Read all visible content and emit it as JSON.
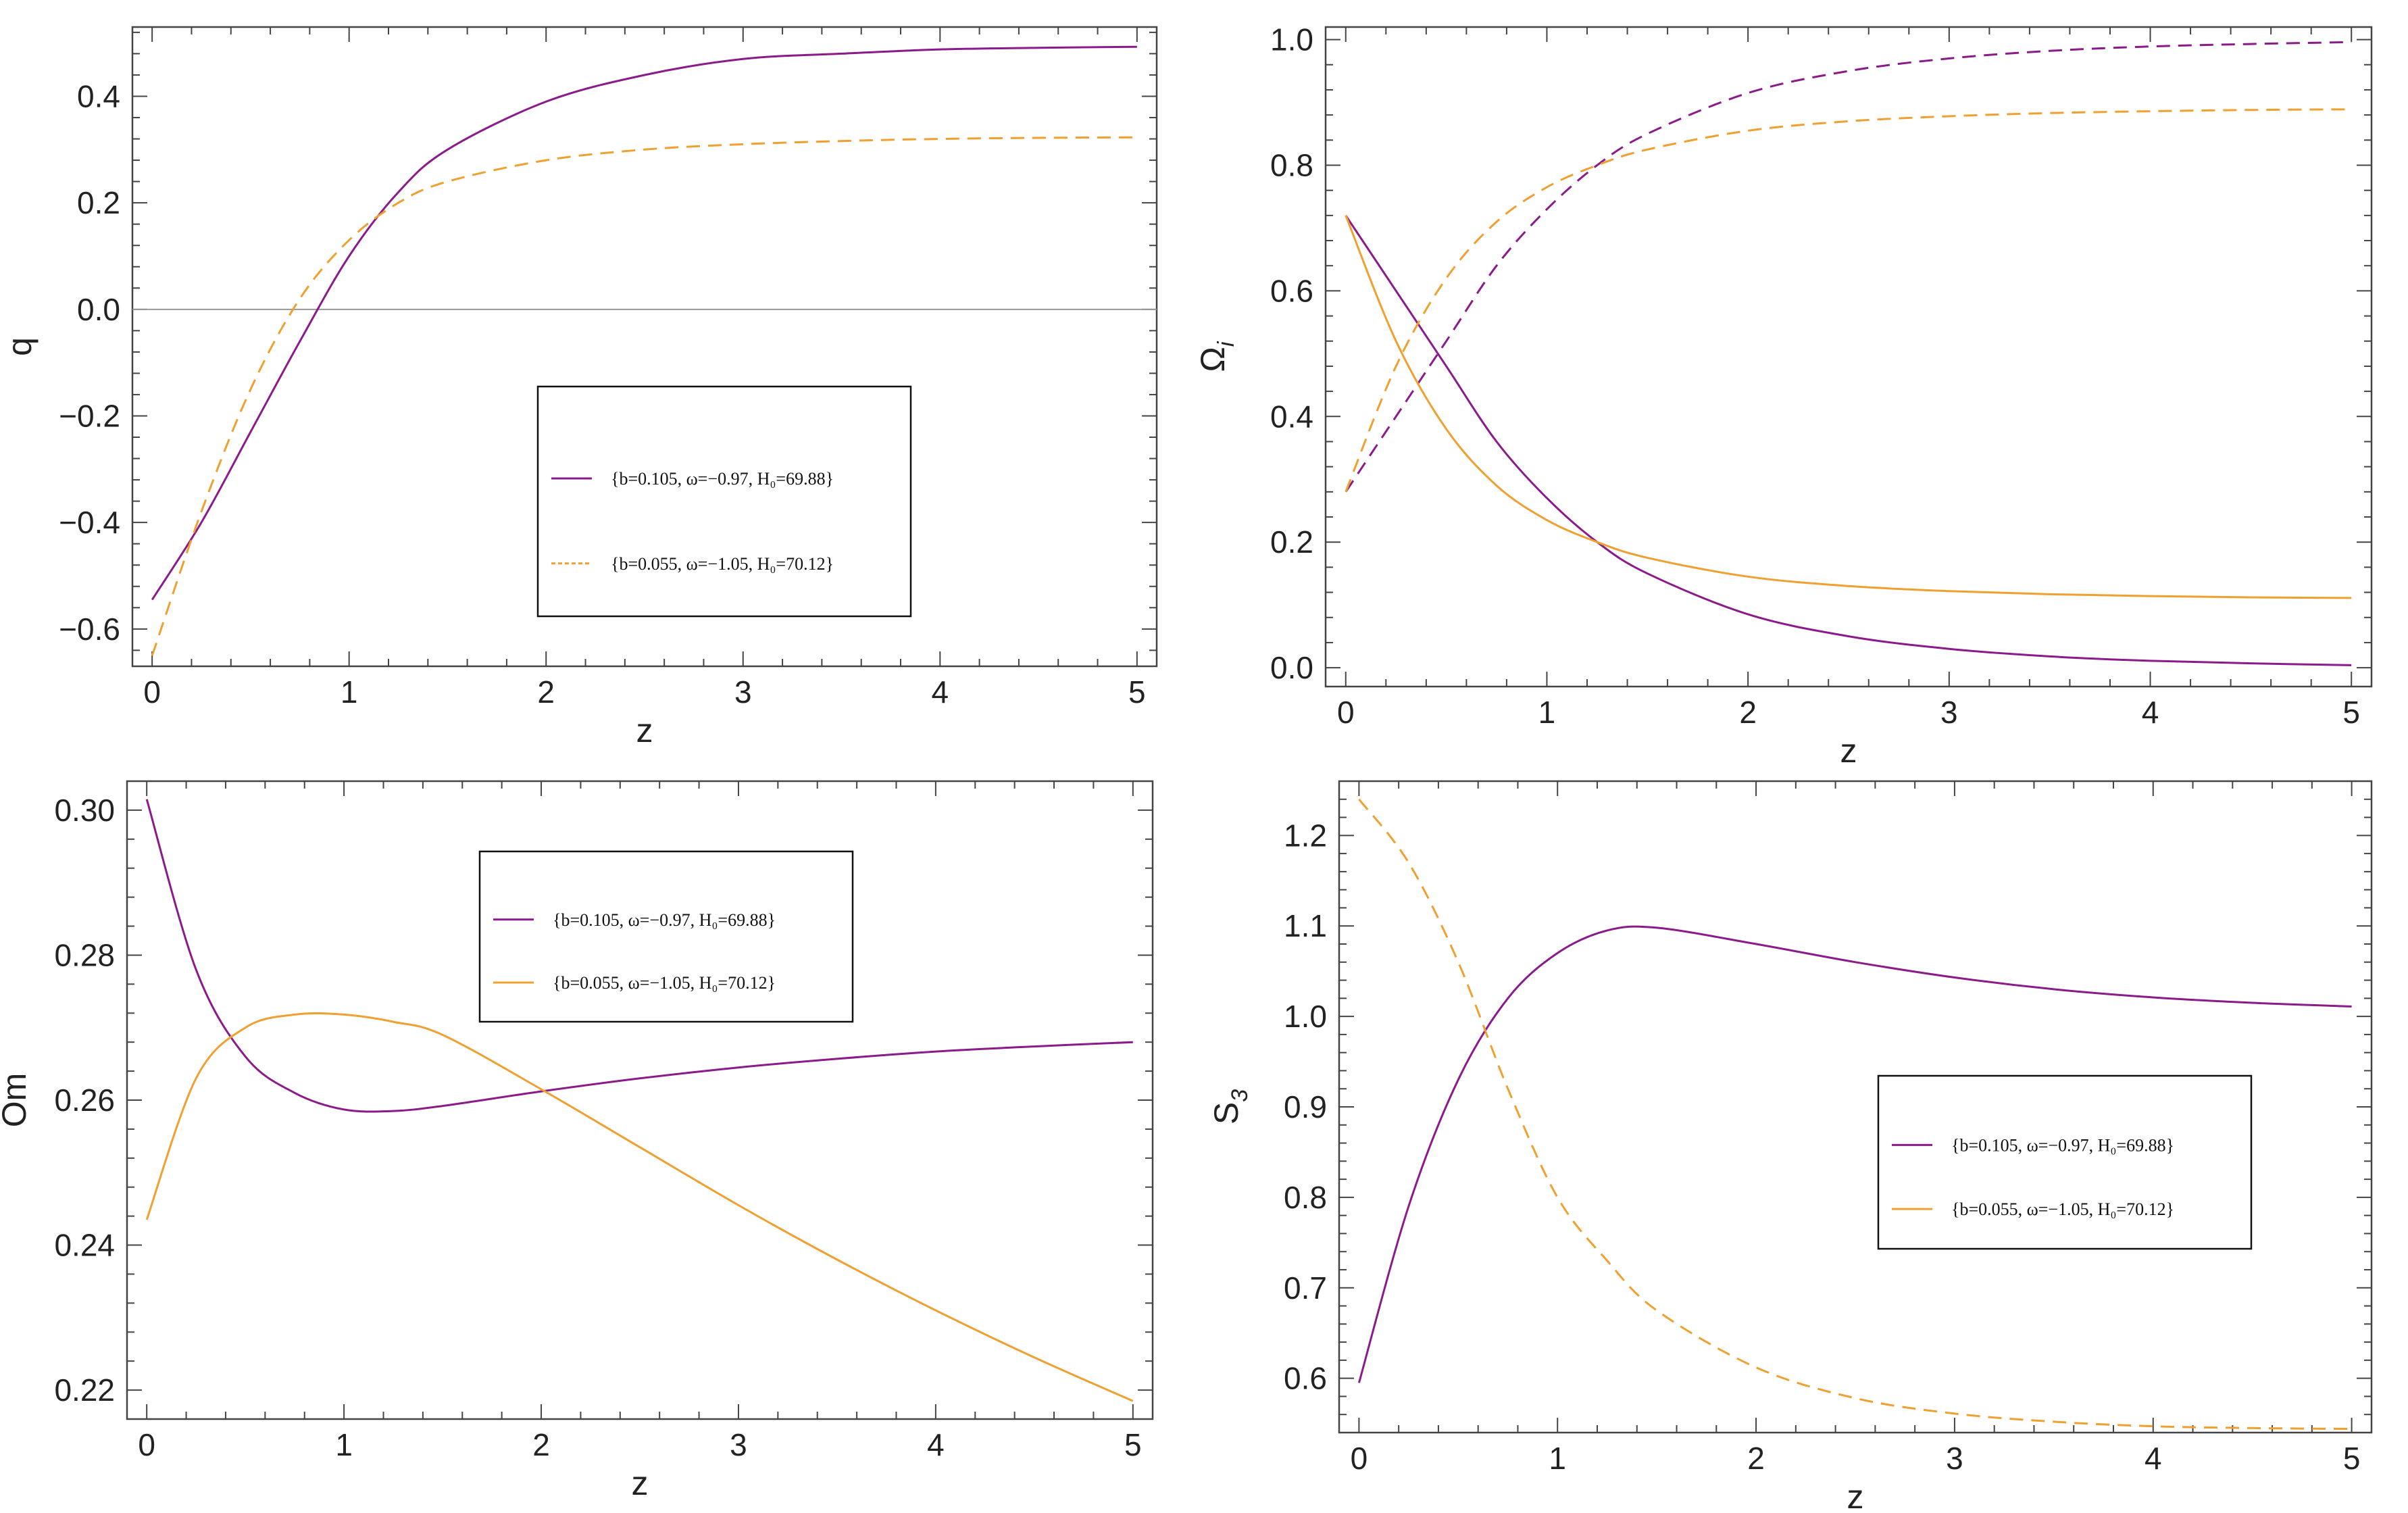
{
  "colors": {
    "purple": "#8B1A8B",
    "orange": "#F0A030",
    "frame": "#444444",
    "zero_line": "#999999"
  },
  "chart_data": [
    {
      "id": "q",
      "type": "line",
      "xlabel": "z",
      "ylabel": "q",
      "xlim": [
        -0.1,
        5.1
      ],
      "ylim": [
        -0.67,
        0.53
      ],
      "xticks": [
        0,
        1,
        2,
        3,
        4,
        5
      ],
      "yticks": [
        -0.6,
        -0.4,
        -0.2,
        0.0,
        0.2,
        0.4
      ],
      "ytick_labels": [
        "−0.6",
        "−0.4",
        "−0.2",
        "0.0",
        "0.2",
        "0.4"
      ],
      "zero_line": true,
      "legend_position": "center-right",
      "x": [
        0,
        0.25,
        0.5,
        0.75,
        1,
        1.25,
        1.5,
        2,
        2.5,
        3,
        3.5,
        4,
        4.5,
        5
      ],
      "series": [
        {
          "name": "{b=0.105, ω=−0.97, H₀=69.88}",
          "color": "purple",
          "dash": false,
          "values": [
            -0.545,
            -0.4,
            -0.23,
            -0.06,
            0.1,
            0.22,
            0.3,
            0.39,
            0.44,
            0.47,
            0.48,
            0.488,
            0.491,
            0.493
          ]
        },
        {
          "name": "{b=0.055, ω=−1.05, H₀=70.12}",
          "color": "orange",
          "dash": true,
          "values": [
            -0.65,
            -0.38,
            -0.15,
            0.02,
            0.13,
            0.2,
            0.24,
            0.28,
            0.3,
            0.31,
            0.316,
            0.32,
            0.322,
            0.323
          ]
        }
      ]
    },
    {
      "id": "omega_i",
      "type": "line",
      "xlabel": "z",
      "ylabel": "Ω",
      "ylabel_sub": "i",
      "xlim": [
        -0.1,
        5.1
      ],
      "ylim": [
        -0.03,
        1.02
      ],
      "xticks": [
        0,
        1,
        2,
        3,
        4,
        5
      ],
      "yticks": [
        0.0,
        0.2,
        0.4,
        0.6,
        0.8,
        1.0
      ],
      "ytick_labels": [
        "0.0",
        "0.2",
        "0.4",
        "0.6",
        "0.8",
        "1.0"
      ],
      "legend_position": "none",
      "x": [
        0,
        0.25,
        0.5,
        0.75,
        1,
        1.25,
        1.5,
        2,
        2.5,
        3,
        3.5,
        4,
        4.5,
        5
      ],
      "series": [
        {
          "color": "purple",
          "dash": false,
          "values": [
            0.72,
            0.6,
            0.48,
            0.36,
            0.27,
            0.2,
            0.15,
            0.085,
            0.05,
            0.03,
            0.018,
            0.011,
            0.007,
            0.004
          ]
        },
        {
          "color": "purple",
          "dash": true,
          "values": [
            0.28,
            0.4,
            0.52,
            0.64,
            0.73,
            0.8,
            0.85,
            0.915,
            0.95,
            0.97,
            0.982,
            0.989,
            0.993,
            0.996
          ]
        },
        {
          "color": "orange",
          "dash": false,
          "values": [
            0.72,
            0.52,
            0.38,
            0.29,
            0.235,
            0.2,
            0.175,
            0.145,
            0.13,
            0.122,
            0.117,
            0.114,
            0.112,
            0.111
          ]
        },
        {
          "color": "orange",
          "dash": true,
          "values": [
            0.28,
            0.48,
            0.62,
            0.71,
            0.765,
            0.8,
            0.825,
            0.855,
            0.87,
            0.878,
            0.883,
            0.886,
            0.888,
            0.889
          ]
        }
      ]
    },
    {
      "id": "om",
      "type": "line",
      "xlabel": "z",
      "ylabel": "Om",
      "xlim": [
        -0.1,
        5.1
      ],
      "ylim": [
        0.216,
        0.304
      ],
      "xticks": [
        0,
        1,
        2,
        3,
        4,
        5
      ],
      "yticks": [
        0.22,
        0.24,
        0.26,
        0.28,
        0.3
      ],
      "ytick_labels": [
        "0.22",
        "0.24",
        "0.26",
        "0.28",
        "0.30"
      ],
      "legend_position": "top-center",
      "x": [
        0,
        0.25,
        0.5,
        0.75,
        1,
        1.25,
        1.5,
        2,
        2.5,
        3,
        3.5,
        4,
        4.5,
        5
      ],
      "series": [
        {
          "name": "{b=0.105, ω=−0.97, H₀=69.88}",
          "color": "purple",
          "dash": false,
          "values": [
            0.3015,
            0.278,
            0.266,
            0.261,
            0.2587,
            0.2585,
            0.2592,
            0.2612,
            0.263,
            0.2645,
            0.2657,
            0.2667,
            0.2674,
            0.268
          ]
        },
        {
          "name": "{b=0.055, ω=−1.05, H₀=70.12}",
          "color": "orange",
          "dash": false,
          "values": [
            0.2435,
            0.263,
            0.27,
            0.2718,
            0.2718,
            0.2708,
            0.269,
            0.2615,
            0.2535,
            0.2455,
            0.238,
            0.231,
            0.2245,
            0.2185
          ]
        }
      ]
    },
    {
      "id": "s3",
      "type": "line",
      "xlabel": "z",
      "ylabel": "S",
      "ylabel_sub": "3",
      "xlim": [
        -0.1,
        5.1
      ],
      "ylim": [
        0.54,
        1.26
      ],
      "xticks": [
        0,
        1,
        2,
        3,
        4,
        5
      ],
      "yticks": [
        0.6,
        0.7,
        0.8,
        0.9,
        1.0,
        1.1,
        1.2
      ],
      "ytick_labels": [
        "0.6",
        "0.7",
        "0.8",
        "0.9",
        "1.0",
        "1.1",
        "1.2"
      ],
      "legend_position": "center-right",
      "x": [
        0,
        0.25,
        0.5,
        0.75,
        1,
        1.25,
        1.5,
        2,
        2.5,
        3,
        3.5,
        4,
        4.5,
        5
      ],
      "series": [
        {
          "name": "{b=0.105, ω=−0.97, H₀=69.88}",
          "color": "purple",
          "dash": false,
          "values": [
            0.595,
            0.79,
            0.93,
            1.02,
            1.07,
            1.095,
            1.098,
            1.08,
            1.06,
            1.043,
            1.03,
            1.021,
            1.015,
            1.011
          ]
        },
        {
          "name": "{b=0.055, ω=−1.05, H₀=70.12}",
          "color": "orange",
          "dash": true,
          "values": [
            1.24,
            1.17,
            1.06,
            0.92,
            0.8,
            0.73,
            0.675,
            0.612,
            0.578,
            0.561,
            0.552,
            0.547,
            0.545,
            0.544
          ]
        }
      ]
    }
  ]
}
